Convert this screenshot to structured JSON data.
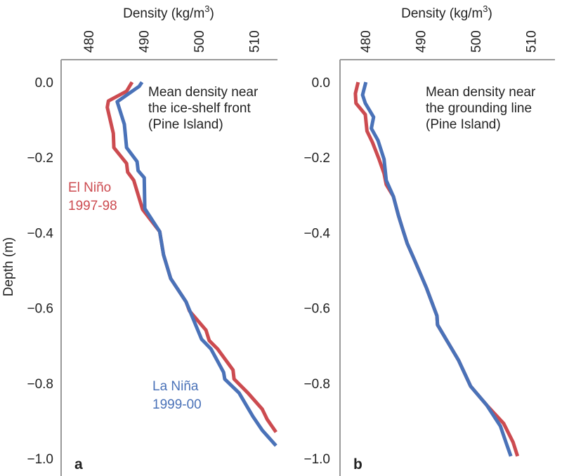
{
  "chart_data": [
    {
      "type": "line",
      "panel_letter": "a",
      "xlabel": "Density (kg/m",
      "xlabel_sup": "3",
      "xlabel_close": ")",
      "ylabel": "Depth (m)",
      "xlim": [
        475.2,
        514.3
      ],
      "ylim": [
        -1.05,
        0.06
      ],
      "xticks": [
        "480",
        "490",
        "500",
        "510"
      ],
      "xtick_values": [
        480,
        490,
        500,
        510
      ],
      "yticks": [
        "0.0",
        "−0.2",
        "−0.4",
        "−0.6",
        "−0.8",
        "−1.0"
      ],
      "ytick_values": [
        0,
        -0.2,
        -0.4,
        -0.6,
        -0.8,
        -1.0
      ],
      "annotation": [
        "Mean density near",
        "the ice-shelf front",
        "(Pine Island)"
      ],
      "series": [
        {
          "name": "El Niño 1997-98",
          "label_lines": [
            "El Niño",
            "1997-98"
          ],
          "color": "#cc4b50",
          "points": [
            [
              487.9,
              0.0
            ],
            [
              486.9,
              -0.024
            ],
            [
              483.6,
              -0.05
            ],
            [
              483.4,
              -0.067
            ],
            [
              484.5,
              -0.136
            ],
            [
              484.6,
              -0.174
            ],
            [
              486.9,
              -0.216
            ],
            [
              487.1,
              -0.239
            ],
            [
              488.2,
              -0.261
            ],
            [
              489.8,
              -0.338
            ],
            [
              492.9,
              -0.397
            ],
            [
              493.6,
              -0.459
            ],
            [
              494.9,
              -0.522
            ],
            [
              497.7,
              -0.584
            ],
            [
              498.3,
              -0.608
            ],
            [
              501.3,
              -0.659
            ],
            [
              501.9,
              -0.687
            ],
            [
              503.4,
              -0.709
            ],
            [
              506.2,
              -0.765
            ],
            [
              506.4,
              -0.789
            ],
            [
              508.9,
              -0.826
            ],
            [
              511.5,
              -0.869
            ],
            [
              512.4,
              -0.896
            ],
            [
              514.0,
              -0.93
            ]
          ]
        },
        {
          "name": "La Niña 1999-00",
          "label_lines": [
            "La Niña",
            "1999-00"
          ],
          "color": "#4a72b8",
          "points": [
            [
              489.7,
              0.0
            ],
            [
              489.2,
              -0.011
            ],
            [
              485.2,
              -0.052
            ],
            [
              486.5,
              -0.112
            ],
            [
              486.9,
              -0.174
            ],
            [
              488.8,
              -0.211
            ],
            [
              489.0,
              -0.235
            ],
            [
              490.1,
              -0.254
            ],
            [
              490.2,
              -0.336
            ],
            [
              492.9,
              -0.397
            ],
            [
              493.6,
              -0.459
            ],
            [
              494.9,
              -0.522
            ],
            [
              497.7,
              -0.584
            ],
            [
              500.5,
              -0.683
            ],
            [
              502.2,
              -0.709
            ],
            [
              504.5,
              -0.771
            ],
            [
              504.7,
              -0.789
            ],
            [
              507.3,
              -0.826
            ],
            [
              509.8,
              -0.888
            ],
            [
              511.5,
              -0.925
            ],
            [
              514.0,
              -0.966
            ]
          ]
        }
      ]
    },
    {
      "type": "line",
      "panel_letter": "b",
      "xlabel": "Density (kg/m",
      "xlabel_sup": "3",
      "xlabel_close": ")",
      "xlim": [
        475.2,
        514.3
      ],
      "ylim": [
        -1.05,
        0.06
      ],
      "xticks": [
        "480",
        "490",
        "500",
        "510"
      ],
      "xtick_values": [
        480,
        490,
        500,
        510
      ],
      "yticks": [
        "0.0",
        "−0.2",
        "−0.4",
        "−0.6",
        "−0.8",
        "−1.0"
      ],
      "ytick_values": [
        0,
        -0.2,
        -0.4,
        -0.6,
        -0.8,
        -1.0
      ],
      "annotation": [
        "Mean density near",
        "the grounding line",
        "(Pine Island)"
      ],
      "series": [
        {
          "name": "El Niño 1997-98",
          "color": "#cc4b50",
          "points": [
            [
              478.7,
              0.0
            ],
            [
              478.2,
              -0.03
            ],
            [
              478.3,
              -0.056
            ],
            [
              480.0,
              -0.086
            ],
            [
              480.3,
              -0.13
            ],
            [
              481.3,
              -0.16
            ],
            [
              482.5,
              -0.205
            ],
            [
              483.4,
              -0.243
            ],
            [
              483.8,
              -0.272
            ],
            [
              485.1,
              -0.304
            ],
            [
              486.0,
              -0.354
            ],
            [
              486.8,
              -0.392
            ],
            [
              487.6,
              -0.429
            ],
            [
              488.9,
              -0.472
            ],
            [
              491.1,
              -0.547
            ],
            [
              493.0,
              -0.621
            ],
            [
              493.1,
              -0.645
            ],
            [
              496.9,
              -0.739
            ],
            [
              499.1,
              -0.808
            ],
            [
              502.0,
              -0.858
            ],
            [
              505.1,
              -0.907
            ],
            [
              506.8,
              -0.957
            ],
            [
              507.6,
              -0.994
            ]
          ]
        },
        {
          "name": "La Niña 1999-00",
          "color": "#4a72b8",
          "points": [
            [
              480.1,
              0.0
            ],
            [
              479.5,
              -0.034
            ],
            [
              480.0,
              -0.056
            ],
            [
              481.5,
              -0.093
            ],
            [
              481.1,
              -0.123
            ],
            [
              482.3,
              -0.155
            ],
            [
              483.4,
              -0.205
            ],
            [
              483.8,
              -0.261
            ],
            [
              485.1,
              -0.304
            ],
            [
              486.0,
              -0.354
            ],
            [
              486.8,
              -0.392
            ],
            [
              487.6,
              -0.429
            ],
            [
              488.9,
              -0.472
            ],
            [
              491.1,
              -0.547
            ],
            [
              493.0,
              -0.621
            ],
            [
              493.1,
              -0.645
            ],
            [
              496.9,
              -0.739
            ],
            [
              499.1,
              -0.808
            ],
            [
              502.0,
              -0.858
            ],
            [
              504.5,
              -0.914
            ],
            [
              505.5,
              -0.957
            ],
            [
              506.4,
              -0.994
            ]
          ]
        }
      ]
    }
  ]
}
